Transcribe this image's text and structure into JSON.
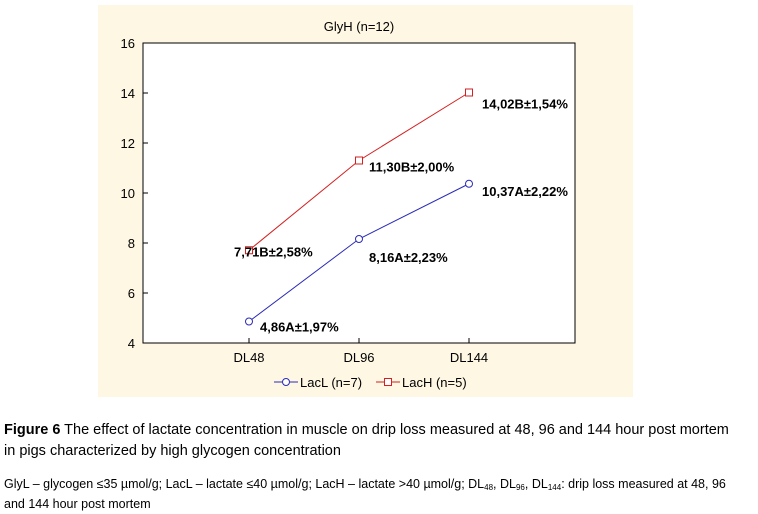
{
  "chart_data": {
    "type": "line",
    "title": "GlyH (n=12)",
    "categories": [
      "DL48",
      "DL96",
      "DL144"
    ],
    "yticks": [
      "4",
      "6",
      "8",
      "10",
      "12",
      "14",
      "16"
    ],
    "ylim": [
      4,
      16
    ],
    "xlabel": "",
    "ylabel": "",
    "grid": false,
    "legend_position": "bottom",
    "series": [
      {
        "name": "LacL (n=7)",
        "color": "#2b2bb8",
        "marker": "circle",
        "values": [
          4.86,
          8.16,
          10.37
        ],
        "labels": [
          "4,86A±1,97%",
          "8,16A±2,23%",
          "10,37A±2,22%"
        ]
      },
      {
        "name": "LacH (n=5)",
        "color": "#d42020",
        "marker": "square",
        "values": [
          7.71,
          11.3,
          14.02
        ],
        "labels": [
          "7,71B±2,58%",
          "11,30B±2,00%",
          "14,02B±1,54%"
        ]
      }
    ]
  },
  "caption": {
    "label": "Figure 6",
    "text": " The effect of lactate concentration in muscle on drip loss measured at 48, 96 and 144 hour post mortem in pigs characterized by high glycogen concentration"
  },
  "note": {
    "part1": "GlyL – glycogen ≤35 µmol/g; LacL – lactate ≤40 µmol/g; LacH – lactate >40 µmol/g; DL",
    "sub1": "48",
    "sep1": ", DL",
    "sub2": "96",
    "sep2": ", DL",
    "sub3": "144",
    "part2": ": drip loss measured at 48, 96 and 144 hour post mortem"
  }
}
